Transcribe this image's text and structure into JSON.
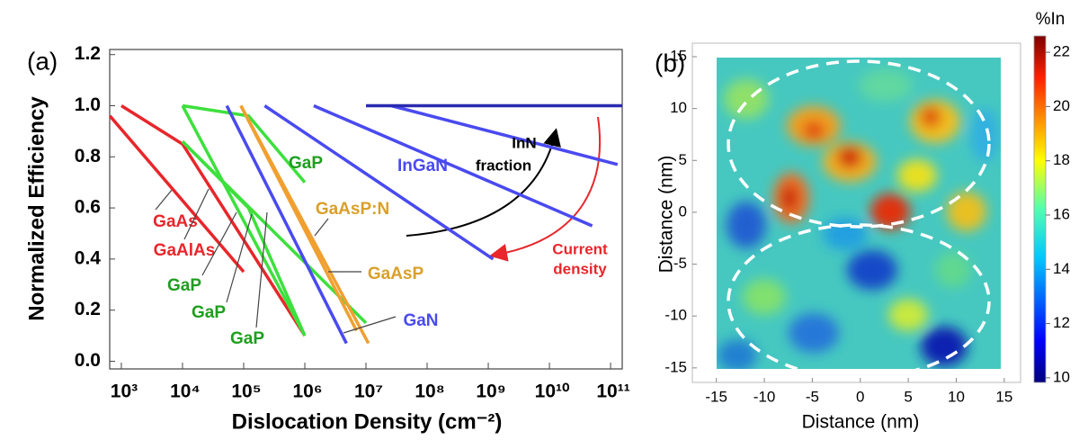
{
  "chart_data": [
    {
      "type": "line",
      "panel_label": "(a)",
      "xlabel": "Dislocation Density (cm⁻²)",
      "ylabel": "Normalized Efficiency",
      "xscale": "log",
      "xlim": [
        645,
        155000000000
      ],
      "ylim": [
        -0.03,
        1.22
      ],
      "xticks": [
        {
          "value": 1000,
          "label": "10³"
        },
        {
          "value": 10000,
          "label": "10⁴"
        },
        {
          "value": 100000,
          "label": "10⁵"
        },
        {
          "value": 1000000,
          "label": "10⁶"
        },
        {
          "value": 10000000,
          "label": "10⁷"
        },
        {
          "value": 100000000,
          "label": "10⁸"
        },
        {
          "value": 1000000000,
          "label": "10⁹"
        },
        {
          "value": 10000000000,
          "label": "10¹⁰"
        },
        {
          "value": 100000000000,
          "label": "10¹¹"
        }
      ],
      "yticks": [
        {
          "value": 0,
          "label": "0.0"
        },
        0.2,
        0.4,
        0.6,
        0.8,
        {
          "value": 1,
          "label": "1.0"
        },
        1.2
      ],
      "series": [
        {
          "name": "GaAs",
          "color": "#e8262b",
          "label_color": "#e8262b",
          "x": [
            1000,
            10000,
            1000000
          ],
          "values": [
            1.0,
            0.85,
            0.1
          ]
        },
        {
          "name": "GaAlAs",
          "color": "#e8262b",
          "label_color": "#e8262b",
          "x": [
            650,
            100000
          ],
          "values": [
            0.96,
            0.35
          ]
        },
        {
          "name": "GaP",
          "color": "#3de03d",
          "label_color": "#1f9e1f",
          "x": [
            10000,
            120000,
            1000000
          ],
          "values": [
            1.0,
            0.96,
            0.7
          ]
        },
        {
          "name": "GaP",
          "color": "#3de03d",
          "label_color": "#1f9e1f",
          "x": [
            10000,
            1000000
          ],
          "values": [
            1.0,
            0.1
          ]
        },
        {
          "name": "GaP",
          "color": "#3de03d",
          "label_color": "#1f9e1f",
          "x": [
            10000,
            120000,
            1000000
          ],
          "values": [
            0.86,
            0.6,
            0.1
          ]
        },
        {
          "name": "GaP",
          "color": "#3de03d",
          "label_color": "#1f9e1f",
          "x": [
            10000,
            10000000
          ],
          "values": [
            0.86,
            0.15
          ]
        },
        {
          "name": "GaAsP:N",
          "color": "#f0a030",
          "label_color": "#d9a02a",
          "x": [
            90000,
            11000000
          ],
          "values": [
            1.0,
            0.07
          ]
        },
        {
          "name": "GaAsP",
          "color": "#f0a030",
          "label_color": "#d9a02a",
          "x": [
            90000,
            7000000
          ],
          "values": [
            1.0,
            0.12
          ]
        },
        {
          "name": "GaN",
          "color": "#4a4af0",
          "label_color": "#4a4af0",
          "x": [
            53000,
            4800000
          ],
          "values": [
            1.0,
            0.07
          ]
        },
        {
          "name": "InGaN",
          "color": "#4a4af0",
          "label_color": "#4a4af0",
          "x": [
            220000,
            1200000000
          ],
          "values": [
            1.0,
            0.4
          ]
        },
        {
          "color": "#4a4af0",
          "x": [
            1400000,
            50000000000
          ],
          "values": [
            1.0,
            0.53
          ]
        },
        {
          "color": "#4a4af0",
          "x": [
            26000000,
            130000000000
          ],
          "values": [
            1.0,
            0.77
          ]
        },
        {
          "color": "#2a2ab0",
          "x": [
            10000000,
            155000000000
          ],
          "values": [
            1.0,
            1.0
          ]
        }
      ],
      "annotations": [
        {
          "lines": [
            "InN",
            "fraction"
          ],
          "color": "#000000"
        },
        {
          "lines": [
            "Current",
            "density"
          ],
          "color": "#e8262b"
        }
      ]
    },
    {
      "type": "heatmap",
      "panel_label": "(b)",
      "xlabel": "Distance (nm)",
      "ylabel": "Distance (nm)",
      "xlim": [
        -17.5,
        16.7
      ],
      "ylim": [
        -16.4,
        16.3
      ],
      "xticks": [
        -15,
        -10,
        -5,
        0,
        5,
        10,
        15
      ],
      "yticks": [
        -15,
        -10,
        -5,
        0,
        5,
        10,
        15
      ],
      "colorbar": {
        "title": "%In",
        "lim": [
          9.83,
          22.6
        ],
        "ticks": [
          10,
          12,
          14,
          16,
          18,
          20,
          22
        ],
        "colormap": "jet"
      }
    }
  ]
}
